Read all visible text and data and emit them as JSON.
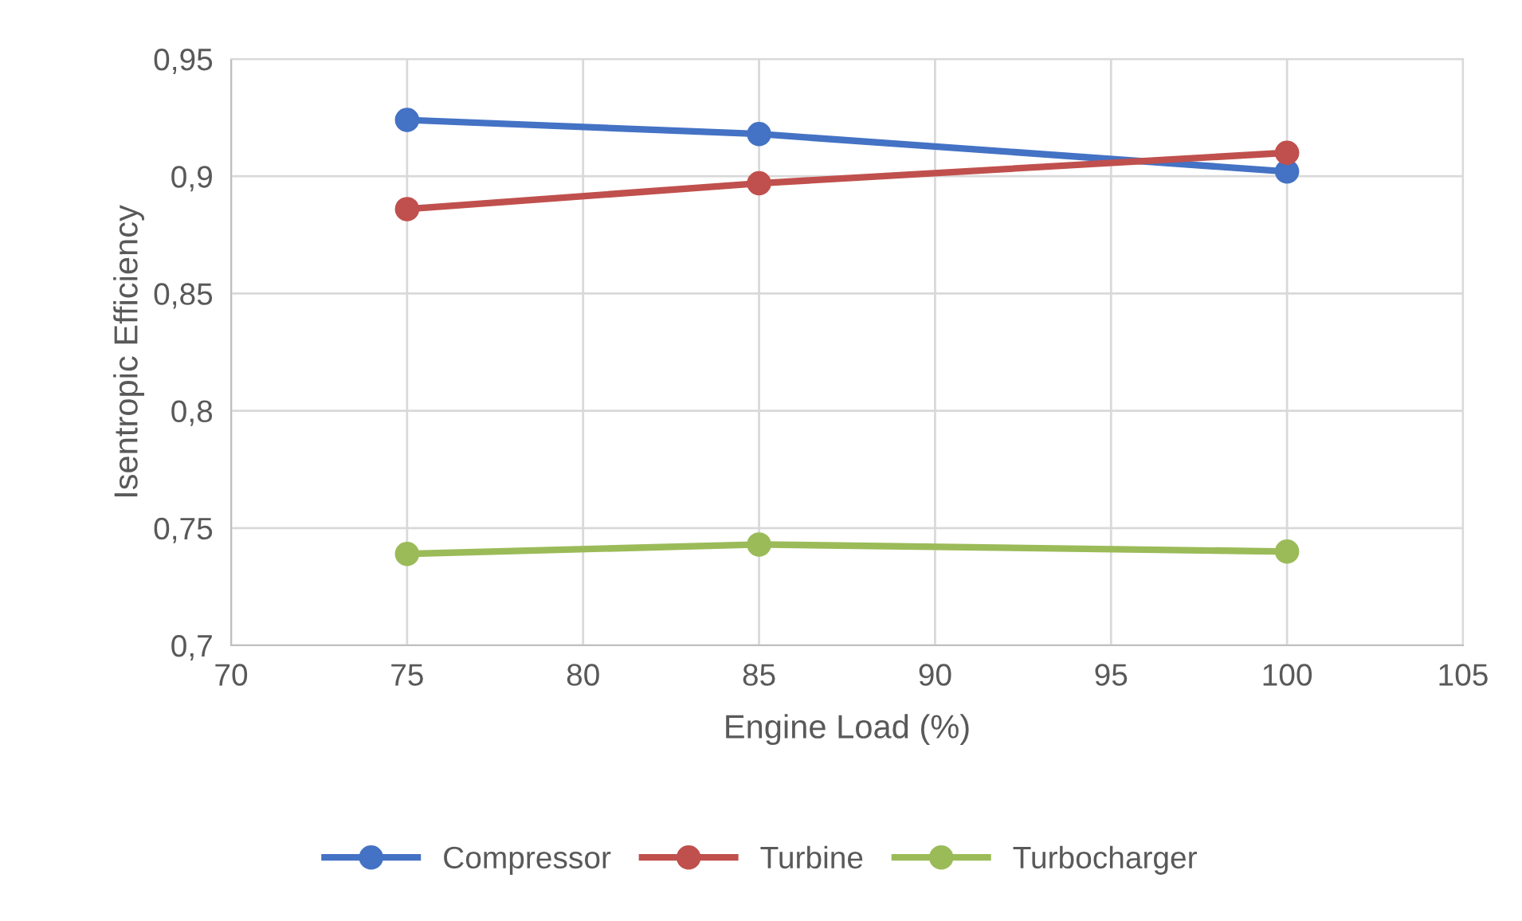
{
  "chart_data": {
    "type": "line",
    "xlabel": "Engine Load (%)",
    "ylabel": "Isentropic Efficiency",
    "x": [
      75,
      85,
      100
    ],
    "series": [
      {
        "name": "Compressor",
        "color": "#4472c4",
        "values": [
          0.924,
          0.918,
          0.902
        ]
      },
      {
        "name": "Turbine",
        "color": "#c0504d",
        "values": [
          0.886,
          0.897,
          0.91
        ]
      },
      {
        "name": "Turbocharger",
        "color": "#9bbb59",
        "values": [
          0.739,
          0.743,
          0.74
        ]
      }
    ],
    "xlim": [
      70,
      105
    ],
    "xticks": [
      70,
      75,
      80,
      85,
      90,
      95,
      100,
      105
    ],
    "ylim": [
      0.7,
      0.95
    ],
    "yticks": [
      {
        "value": 0.7,
        "label": "0,7"
      },
      {
        "value": 0.75,
        "label": "0,75"
      },
      {
        "value": 0.8,
        "label": "0,8"
      },
      {
        "value": 0.85,
        "label": "0,85"
      },
      {
        "value": 0.9,
        "label": "0,9"
      },
      {
        "value": 0.95,
        "label": "0,95"
      }
    ],
    "grid": true,
    "legend": "bottom",
    "marker": "circle",
    "line_style": "solid"
  }
}
